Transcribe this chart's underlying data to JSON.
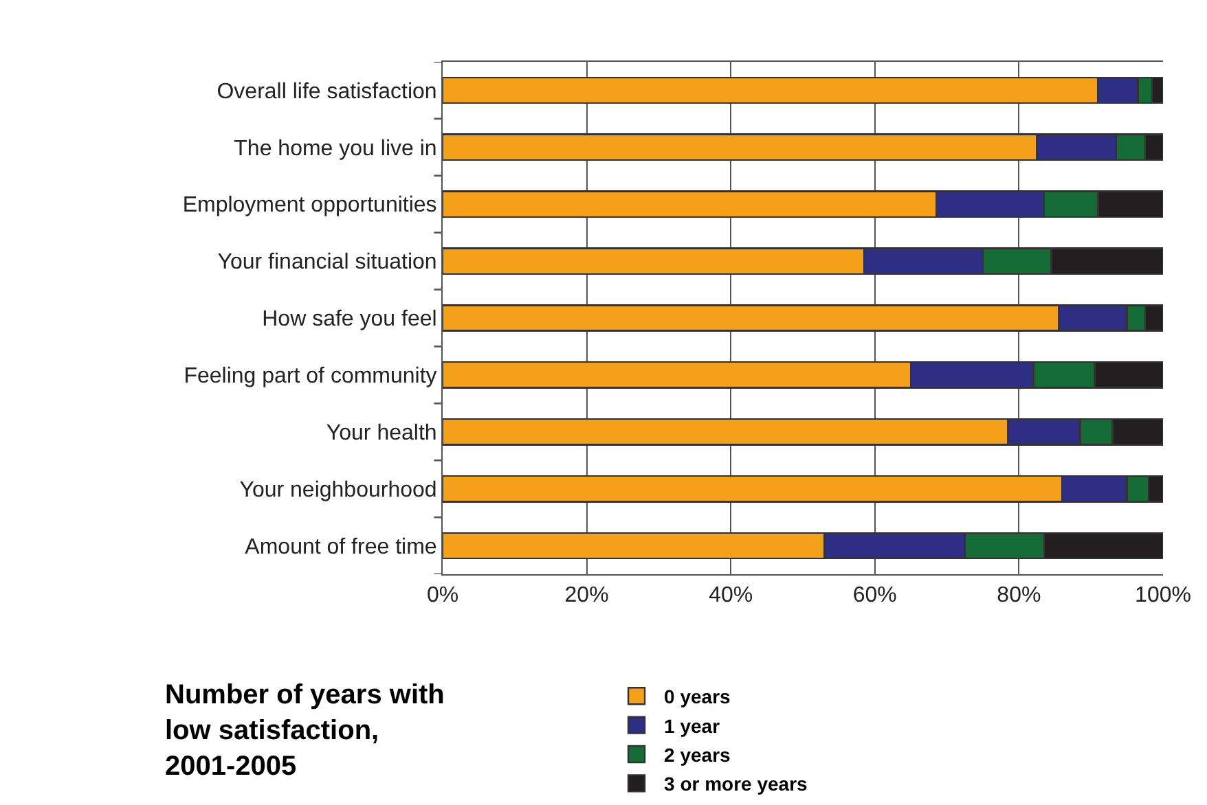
{
  "chart_data": {
    "type": "bar",
    "orientation": "horizontal",
    "stacked": true,
    "categories": [
      "Overall life satisfaction",
      "The home you live in",
      "Employment opportunities",
      "Your financial situation",
      "How safe you feel",
      "Feeling part of community",
      "Your health",
      "Your neighbourhood",
      "Amount of free time"
    ],
    "series": [
      {
        "name": "0 years",
        "color": "#f5a01a",
        "values": [
          91,
          82.5,
          68.5,
          58.5,
          85.5,
          65,
          78.5,
          86,
          53
        ]
      },
      {
        "name": "1 year",
        "color": "#2e2e85",
        "values": [
          5.5,
          11,
          15,
          16.5,
          9.5,
          17,
          10,
          9,
          19.5
        ]
      },
      {
        "name": "2 years",
        "color": "#156b35",
        "values": [
          2,
          4,
          7.5,
          9.5,
          2.5,
          8.5,
          4.5,
          3,
          11
        ]
      },
      {
        "name": "3 or more years",
        "color": "#231f20",
        "values": [
          1.5,
          2.5,
          9,
          15.5,
          2.5,
          9.5,
          7,
          2,
          16.5
        ]
      }
    ],
    "xlim": [
      0,
      100
    ],
    "xticks": [
      {
        "value": 0,
        "label": "0%"
      },
      {
        "value": 20,
        "label": "20%"
      },
      {
        "value": 40,
        "label": "40%"
      },
      {
        "value": 60,
        "label": "60%"
      },
      {
        "value": 80,
        "label": "80%"
      },
      {
        "value": 100,
        "label": "100%"
      }
    ],
    "grid": "x",
    "legend": "bottom",
    "legend_title": "Number of years with low satisfaction, 2001-2005"
  }
}
